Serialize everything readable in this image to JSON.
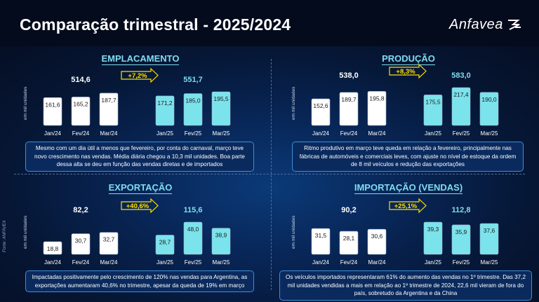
{
  "header": {
    "title": "Comparação trimestral - 2025/2024",
    "logo_text": "Anfavea"
  },
  "colors": {
    "bar_2024": "#ffffff",
    "bar_2025": "#7be3ec",
    "accent": "#7fdcf0",
    "badge": "#ffe000"
  },
  "ylabel": "em mil unidades",
  "source_label": "Fonte: ANFAVEA",
  "chart_data": [
    {
      "type": "bar",
      "title": "EMPLACAMENTO",
      "categories": [
        "Jan/24",
        "Fev/24",
        "Mar/24",
        "Jan/25",
        "Fev/25",
        "Mar/25"
      ],
      "values": [
        161.6,
        165.2,
        187.7,
        171.2,
        185.0,
        195.5
      ],
      "value_labels": [
        "161,6",
        "165,2",
        "187,7",
        "171,2",
        "185,0",
        "195,5"
      ],
      "total_2024": "514,6",
      "total_2025": "551,7",
      "change": "+7,2%",
      "ylabel": "em mil unidades",
      "note": "Mesmo com um dia útil a menos que fevereiro, por conta do carnaval, março teve novo crescimento nas vendas. Média diária chegou a 10,3 mil unidades. Boa parte dessa alta se deu em função das vendas diretas e de importados"
    },
    {
      "type": "bar",
      "title": "PRODUÇÃO",
      "categories": [
        "Jan/24",
        "Fev/24",
        "Mar/24",
        "Jan/25",
        "Fev/25",
        "Mar/25"
      ],
      "values": [
        152.6,
        189.7,
        195.8,
        175.5,
        217.4,
        190.0
      ],
      "value_labels": [
        "152,6",
        "189,7",
        "195,8",
        "175,5",
        "217,4",
        "190,0"
      ],
      "total_2024": "538,0",
      "total_2025": "583,0",
      "change": "+8,3%",
      "ylabel": "em mil unidades",
      "note": "Ritmo produtivo em março teve queda em relação a fevereiro, principalmente nas fábricas de automóveis e comerciais leves, com ajuste no nível de estoque da ordem de 8 mil veículos e redução das exportações"
    },
    {
      "type": "bar",
      "title": "EXPORTAÇÃO",
      "categories": [
        "Jan/24",
        "Fev/24",
        "Mar/24",
        "Jan/25",
        "Fev/25",
        "Mar/25"
      ],
      "values": [
        18.8,
        30.7,
        32.7,
        28.7,
        48.0,
        38.9
      ],
      "value_labels": [
        "18,8",
        "30,7",
        "32,7",
        "28,7",
        "48,0",
        "38,9"
      ],
      "total_2024": "82,2",
      "total_2025": "115,6",
      "change": "+40,6%",
      "ylabel": "em mil unidades",
      "note": "Impactadas positivamente pelo crescimento de 120% nas vendas para Argentina, as exportações aumentaram 40,6% no trimestre, apesar da queda de 19% em março"
    },
    {
      "type": "bar",
      "title": "IMPORTAÇÃO (VENDAS)",
      "categories": [
        "Jan/24",
        "Fev/24",
        "Mar/24",
        "Jan/25",
        "Fev/25",
        "Mar/25"
      ],
      "values": [
        31.5,
        28.1,
        30.6,
        39.3,
        35.9,
        37.6
      ],
      "value_labels": [
        "31,5",
        "28,1",
        "30,6",
        "39,3",
        "35,9",
        "37,6"
      ],
      "total_2024": "90,2",
      "total_2025": "112,8",
      "change": "+25,1%",
      "ylabel": "em mil unidades",
      "note": "Os veículos importados representaram 61% do aumento das vendas no 1º trimestre. Das 37,2 mil unidades vendidas a mais em relação ao 1º trimestre de 2024, 22,6 mil vieram de fora do país, sobretudo da Argentina e da China"
    }
  ]
}
